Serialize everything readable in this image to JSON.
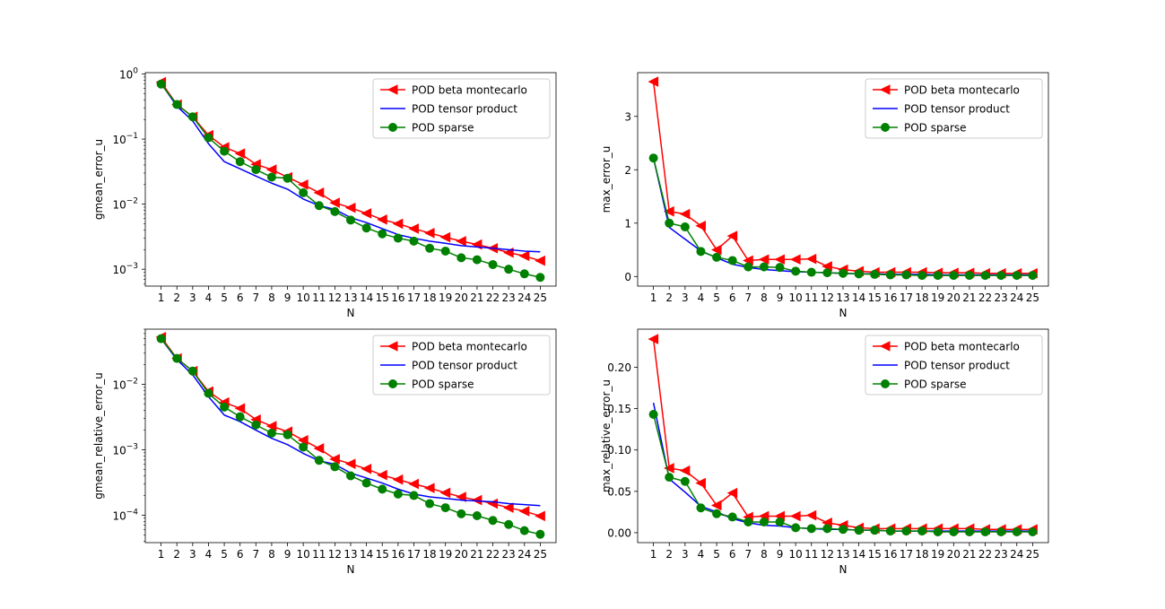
{
  "colors": {
    "red": "#ff0000",
    "blue": "#0000ff",
    "green": "#008000"
  },
  "chart_data": [
    {
      "type": "line",
      "yscale": "log",
      "xlabel": "N",
      "ylabel": "gmean_error_u",
      "ylim": [
        0.00055,
        1.05
      ],
      "yticks": [
        0.001,
        0.01,
        0.1,
        1
      ],
      "ytick_labels": [
        [
          "10",
          "−3"
        ],
        [
          "10",
          "−2"
        ],
        [
          "10",
          "−1"
        ],
        [
          "10",
          "0"
        ]
      ],
      "x": [
        1,
        2,
        3,
        4,
        5,
        6,
        7,
        8,
        9,
        10,
        11,
        12,
        13,
        14,
        15,
        16,
        17,
        18,
        19,
        20,
        21,
        22,
        23,
        24,
        25
      ],
      "legend": {
        "loc": "upper right"
      },
      "series": [
        {
          "name": "POD beta montecarlo",
          "color": "red",
          "marker": "triangle-left",
          "values": [
            0.75,
            0.34,
            0.22,
            0.115,
            0.075,
            0.06,
            0.041,
            0.034,
            0.026,
            0.02,
            0.015,
            0.0105,
            0.0088,
            0.0072,
            0.0058,
            0.005,
            0.0042,
            0.0036,
            0.0031,
            0.0027,
            0.0024,
            0.0021,
            0.0018,
            0.0016,
            0.00135
          ]
        },
        {
          "name": "POD tensor product",
          "color": "blue",
          "marker": "none",
          "values": [
            0.72,
            0.32,
            0.19,
            0.085,
            0.045,
            0.035,
            0.027,
            0.021,
            0.017,
            0.012,
            0.0095,
            0.0083,
            0.0062,
            0.0052,
            0.0042,
            0.0034,
            0.003,
            0.0027,
            0.0025,
            0.0023,
            0.0022,
            0.0021,
            0.002,
            0.0019,
            0.00185
          ]
        },
        {
          "name": "POD sparse",
          "color": "green",
          "marker": "circle",
          "values": [
            0.7,
            0.34,
            0.22,
            0.105,
            0.065,
            0.045,
            0.034,
            0.026,
            0.025,
            0.015,
            0.0095,
            0.0077,
            0.0057,
            0.0043,
            0.0035,
            0.003,
            0.0027,
            0.0021,
            0.0019,
            0.0015,
            0.0014,
            0.00118,
            0.001,
            0.00085,
            0.00075
          ]
        }
      ]
    },
    {
      "type": "line",
      "yscale": "linear",
      "xlabel": "N",
      "ylabel": "max_error_u",
      "ylim": [
        -0.18,
        3.82
      ],
      "yticks": [
        0,
        1,
        2,
        3
      ],
      "ytick_labels": [
        "0",
        "1",
        "2",
        "3"
      ],
      "x": [
        1,
        2,
        3,
        4,
        5,
        6,
        7,
        8,
        9,
        10,
        11,
        12,
        13,
        14,
        15,
        16,
        17,
        18,
        19,
        20,
        21,
        22,
        23,
        24,
        25
      ],
      "legend": {
        "loc": "upper right"
      },
      "series": [
        {
          "name": "POD beta montecarlo",
          "color": "red",
          "marker": "triangle-left",
          "values": [
            3.65,
            1.22,
            1.17,
            0.95,
            0.5,
            0.76,
            0.3,
            0.32,
            0.32,
            0.32,
            0.33,
            0.19,
            0.13,
            0.1,
            0.08,
            0.08,
            0.08,
            0.08,
            0.07,
            0.07,
            0.07,
            0.06,
            0.06,
            0.06,
            0.06
          ]
        },
        {
          "name": "POD tensor product",
          "color": "blue",
          "marker": "none",
          "values": [
            2.22,
            0.92,
            0.7,
            0.48,
            0.35,
            0.23,
            0.17,
            0.13,
            0.11,
            0.09,
            0.08,
            0.07,
            0.06,
            0.05,
            0.05,
            0.04,
            0.04,
            0.04,
            0.03,
            0.03,
            0.03,
            0.03,
            0.03,
            0.03,
            0.03
          ]
        },
        {
          "name": "POD sparse",
          "color": "green",
          "marker": "circle",
          "values": [
            2.22,
            1.0,
            0.93,
            0.47,
            0.36,
            0.3,
            0.18,
            0.18,
            0.17,
            0.1,
            0.08,
            0.07,
            0.06,
            0.05,
            0.04,
            0.03,
            0.03,
            0.02,
            0.02,
            0.02,
            0.02,
            0.02,
            0.02,
            0.02,
            0.02
          ]
        }
      ]
    },
    {
      "type": "line",
      "yscale": "log",
      "xlabel": "N",
      "ylabel": "gmean_relative_error_u",
      "ylim": [
        3.8e-05,
        0.07
      ],
      "yticks": [
        0.0001,
        0.001,
        0.01
      ],
      "ytick_labels": [
        [
          "10",
          "−4"
        ],
        [
          "10",
          "−3"
        ],
        [
          "10",
          "−2"
        ]
      ],
      "x": [
        1,
        2,
        3,
        4,
        5,
        6,
        7,
        8,
        9,
        10,
        11,
        12,
        13,
        14,
        15,
        16,
        17,
        18,
        19,
        20,
        21,
        22,
        23,
        24,
        25
      ],
      "legend": {
        "loc": "upper right"
      },
      "series": [
        {
          "name": "POD beta montecarlo",
          "color": "red",
          "marker": "triangle-left",
          "values": [
            0.053,
            0.025,
            0.016,
            0.0078,
            0.0053,
            0.0043,
            0.0029,
            0.0023,
            0.0019,
            0.0014,
            0.00105,
            0.00072,
            0.00061,
            0.00051,
            0.00041,
            0.00035,
            0.0003,
            0.00026,
            0.00022,
            0.00019,
            0.00017,
            0.00015,
            0.00013,
            0.000115,
            9.7e-05
          ]
        },
        {
          "name": "POD tensor product",
          "color": "blue",
          "marker": "none",
          "values": [
            0.05,
            0.024,
            0.014,
            0.0065,
            0.0034,
            0.0027,
            0.002,
            0.0015,
            0.0012,
            0.00088,
            0.00068,
            0.0006,
            0.00044,
            0.00037,
            0.00031,
            0.00025,
            0.00021,
            0.00019,
            0.00018,
            0.00017,
            0.000165,
            0.00016,
            0.00015,
            0.000145,
            0.00014
          ]
        },
        {
          "name": "POD sparse",
          "color": "green",
          "marker": "circle",
          "values": [
            0.05,
            0.025,
            0.016,
            0.0073,
            0.0045,
            0.0032,
            0.0024,
            0.0018,
            0.0017,
            0.0011,
            0.00069,
            0.00055,
            0.0004,
            0.00031,
            0.00025,
            0.00021,
            0.0002,
            0.00015,
            0.00013,
            0.000105,
            9.8e-05,
            8.3e-05,
            7.2e-05,
            5.8e-05,
            5.1e-05
          ]
        }
      ]
    },
    {
      "type": "line",
      "yscale": "linear",
      "xlabel": "N",
      "ylabel": "max_relative_error_u",
      "ylim": [
        -0.012,
        0.246
      ],
      "yticks": [
        0,
        0.05,
        0.1,
        0.15,
        0.2
      ],
      "ytick_labels": [
        "0.00",
        "0.05",
        "0.10",
        "0.15",
        "0.20"
      ],
      "x": [
        1,
        2,
        3,
        4,
        5,
        6,
        7,
        8,
        9,
        10,
        11,
        12,
        13,
        14,
        15,
        16,
        17,
        18,
        19,
        20,
        21,
        22,
        23,
        24,
        25
      ],
      "legend": {
        "loc": "upper right"
      },
      "series": [
        {
          "name": "POD beta montecarlo",
          "color": "red",
          "marker": "triangle-left",
          "values": [
            0.234,
            0.078,
            0.075,
            0.06,
            0.033,
            0.048,
            0.019,
            0.02,
            0.02,
            0.02,
            0.021,
            0.012,
            0.009,
            0.006,
            0.005,
            0.005,
            0.005,
            0.005,
            0.005,
            0.005,
            0.005,
            0.004,
            0.004,
            0.004,
            0.004
          ]
        },
        {
          "name": "POD tensor product",
          "color": "blue",
          "marker": "none",
          "values": [
            0.157,
            0.065,
            0.049,
            0.032,
            0.025,
            0.017,
            0.012,
            0.009,
            0.008,
            0.006,
            0.005,
            0.004,
            0.004,
            0.003,
            0.003,
            0.002,
            0.002,
            0.002,
            0.002,
            0.002,
            0.002,
            0.002,
            0.002,
            0.002,
            0.002
          ]
        },
        {
          "name": "POD sparse",
          "color": "green",
          "marker": "circle",
          "values": [
            0.143,
            0.067,
            0.062,
            0.03,
            0.023,
            0.019,
            0.013,
            0.013,
            0.013,
            0.006,
            0.005,
            0.005,
            0.004,
            0.003,
            0.003,
            0.002,
            0.002,
            0.002,
            0.001,
            0.001,
            0.001,
            0.001,
            0.001,
            0.001,
            0.001
          ]
        }
      ]
    }
  ]
}
